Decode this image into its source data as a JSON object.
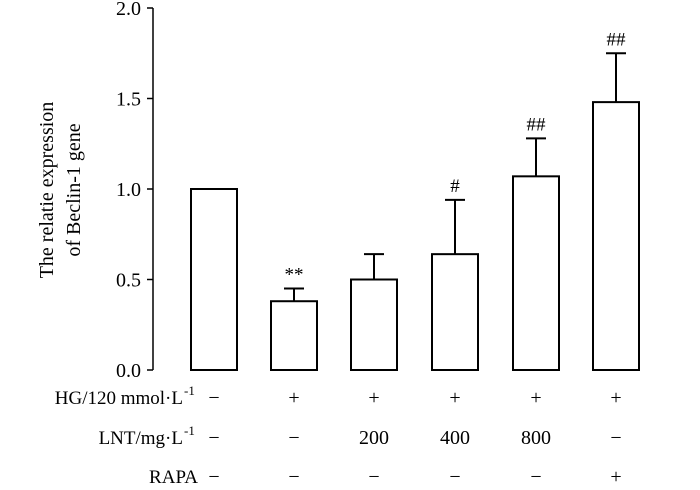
{
  "chart_data": {
    "type": "bar",
    "ylabel_lines": [
      "The relatie expression",
      "of Beclin-1 gene"
    ],
    "ylim": [
      0,
      2.0
    ],
    "yticks": [
      "0.0",
      "0.5",
      "1.0",
      "1.5",
      "2.0"
    ],
    "ytick_values": [
      0,
      0.5,
      1.0,
      1.5,
      2.0
    ],
    "values": [
      1.0,
      0.38,
      0.5,
      0.64,
      1.07,
      1.48
    ],
    "errors": [
      0,
      0.07,
      0.14,
      0.3,
      0.21,
      0.27
    ],
    "significance": [
      "",
      "**",
      "",
      "#",
      "##",
      "##"
    ],
    "conditions": [
      {
        "label": "HG/120 mmol·L",
        "superscript": "-1",
        "values": [
          "−",
          "+",
          "+",
          "+",
          "+",
          "+"
        ]
      },
      {
        "label": "LNT/mg·L",
        "superscript": "-1",
        "values": [
          "−",
          "−",
          "200",
          "400",
          "800",
          "−"
        ]
      },
      {
        "label": "RAPA",
        "superscript": "",
        "values": [
          "−",
          "−",
          "−",
          "−",
          "−",
          "+"
        ]
      }
    ],
    "grid": false,
    "legend": "none"
  }
}
